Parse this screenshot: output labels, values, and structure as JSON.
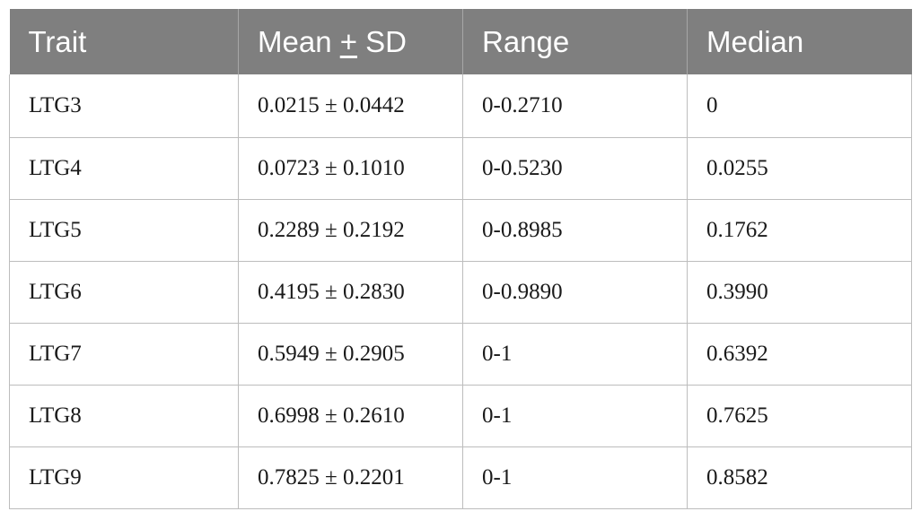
{
  "table": {
    "headers": {
      "trait": "Trait",
      "mean_prefix": "Mean ",
      "mean_pm": "+",
      "mean_suffix": " SD",
      "range": "Range",
      "median": "Median"
    },
    "rows": [
      {
        "trait": "LTG3",
        "mean_sd": "0.0215 ± 0.0442",
        "range": "0-0.2710",
        "median": "0"
      },
      {
        "trait": "LTG4",
        "mean_sd": "0.0723 ± 0.1010",
        "range": "0-0.5230",
        "median": "0.0255"
      },
      {
        "trait": "LTG5",
        "mean_sd": "0.2289 ± 0.2192",
        "range": "0-0.8985",
        "median": "0.1762"
      },
      {
        "trait": "LTG6",
        "mean_sd": "0.4195 ± 0.2830",
        "range": "0-0.9890",
        "median": "0.3990"
      },
      {
        "trait": "LTG7",
        "mean_sd": "0.5949 ± 0.2905",
        "range": "0-1",
        "median": "0.6392"
      },
      {
        "trait": "LTG8",
        "mean_sd": "0.6998 ± 0.2610",
        "range": "0-1",
        "median": "0.7625"
      },
      {
        "trait": "LTG9",
        "mean_sd": "0.7825 ± 0.2201",
        "range": "0-1",
        "median": "0.8582"
      }
    ]
  }
}
